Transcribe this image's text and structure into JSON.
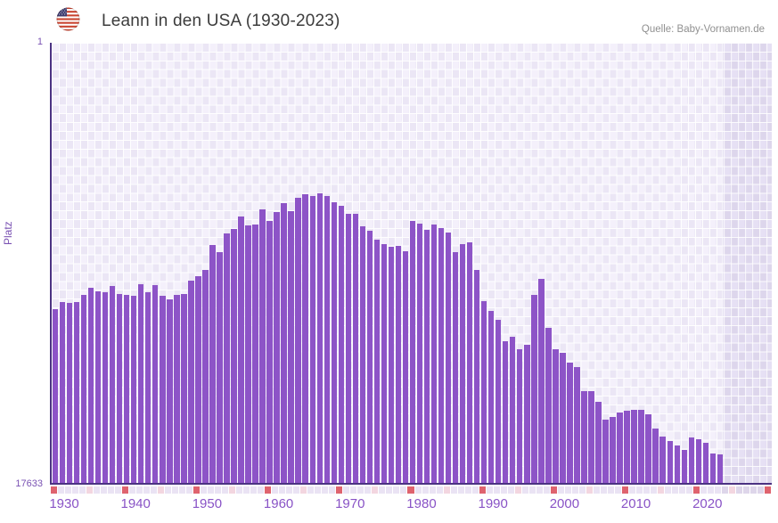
{
  "header": {
    "title": "Leann in den USA (1930-2023)",
    "source": "Quelle: Baby-Vornamen.de",
    "flag_icon": "us-flag-round"
  },
  "chart_data": {
    "type": "bar",
    "title": "Leann in den USA (1930-2023)",
    "ylabel": "Platz",
    "y_top_label": "1",
    "y_bottom_label": "17633",
    "y_scale": "log-inverted-rank",
    "y_min": 1,
    "y_max": 17633,
    "x_start_year": 1930,
    "x_end_year": 2023,
    "x_axis_end_year": 2030,
    "no_data_from_year": 2024,
    "x_ticks": [
      "1930",
      "1940",
      "1950",
      "1960",
      "1970",
      "1980",
      "1990",
      "2000",
      "2010",
      "2020"
    ],
    "legend": "none",
    "grid": "checkered-lavender",
    "series": [
      {
        "name": "Platz",
        "ranks_by_year": [
          367,
          313,
          317,
          313,
          268,
          229,
          248,
          252,
          220,
          263,
          268,
          272,
          211,
          252,
          215,
          272,
          296,
          268,
          263,
          195,
          177,
          154,
          89,
          104,
          69,
          62,
          47,
          57,
          56,
          40,
          52,
          43,
          35,
          42,
          31,
          29,
          30,
          28,
          30,
          34,
          37,
          44,
          44,
          58,
          64,
          79,
          87,
          92,
          91,
          102,
          52,
          55,
          63,
          56,
          61,
          67,
          104,
          87,
          83,
          154,
          308,
          381,
          467,
          746,
          675,
          890,
          816,
          268,
          188,
          560,
          890,
          975,
          1213,
          1333,
          2260,
          2260,
          2860,
          4280,
          4040,
          3660,
          3520,
          3450,
          3390,
          3800,
          5180,
          6190,
          6850,
          7580,
          8390,
          6320,
          6580,
          7110,
          9010,
          9170
        ]
      }
    ],
    "marker_strip": {
      "decade_color": "#df636e",
      "half_decade_color": "#f3d6e0",
      "default_color": "#eae3f4",
      "no_data_default_color": "#ded6ea"
    }
  },
  "colors": {
    "bar": "#8d54c7",
    "axis": "#4b3282",
    "x_tick_text": "#8953c6",
    "y_tick_text": "#7a52b3",
    "title_text": "#3c3c3c",
    "source_text": "#909090"
  }
}
